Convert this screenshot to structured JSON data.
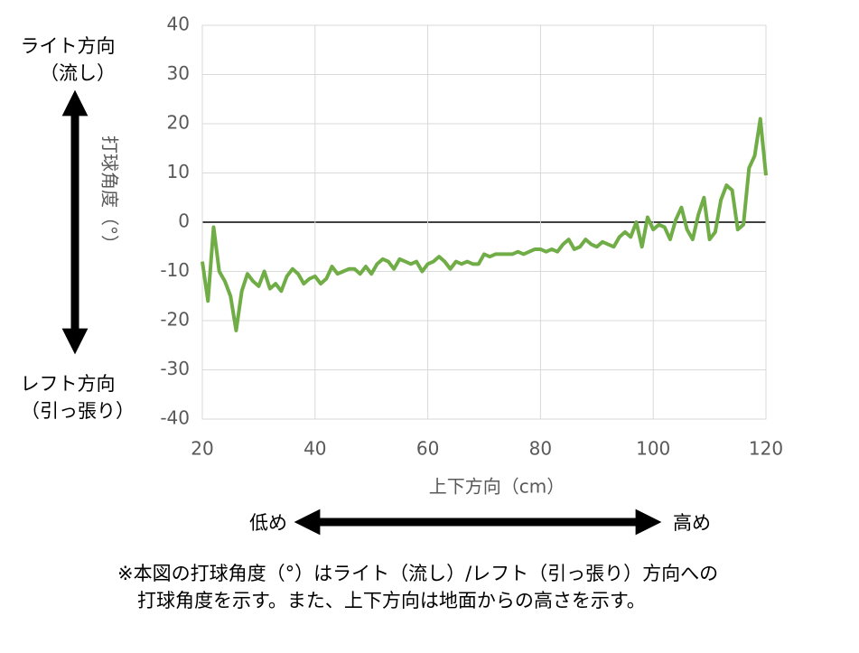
{
  "chart_data": {
    "type": "line",
    "y_label": "打球角度（°）",
    "x_label": "上下方向（cm）",
    "annotations": [
      "ライト方向",
      "（流し）",
      "レフト方向",
      "（引っ張り）",
      "低め",
      "高め"
    ],
    "notes": [
      "※本図の打球角度（°）はライト（流し）/レフト（引っ張り）方向への",
      "打球角度を示す。また、上下方向は地面からの高さを示す。"
    ],
    "color": "#70ad47",
    "grid": true,
    "xlim": [
      20,
      120
    ],
    "xticks": [
      20,
      40,
      60,
      80,
      100,
      120
    ],
    "ylim": [
      -40,
      40
    ],
    "yticks": [
      -40,
      -30,
      -20,
      -10,
      0,
      10,
      20,
      30,
      40
    ],
    "x": [
      20,
      21,
      22,
      23,
      24,
      25,
      26,
      27,
      28,
      29,
      30,
      31,
      32,
      33,
      34,
      35,
      36,
      37,
      38,
      39,
      40,
      41,
      42,
      43,
      44,
      45,
      46,
      47,
      48,
      49,
      50,
      51,
      52,
      53,
      54,
      55,
      56,
      57,
      58,
      59,
      60,
      61,
      62,
      63,
      64,
      65,
      66,
      67,
      68,
      69,
      70,
      71,
      72,
      73,
      74,
      75,
      76,
      77,
      78,
      79,
      80,
      81,
      82,
      83,
      84,
      85,
      86,
      87,
      88,
      89,
      90,
      91,
      92,
      93,
      94,
      95,
      96,
      97,
      98,
      99,
      100,
      101,
      102,
      103,
      104,
      105,
      106,
      107,
      108,
      109,
      110,
      111,
      112,
      113,
      114,
      115,
      116,
      117,
      118,
      119,
      120
    ],
    "values": [
      -8,
      -16,
      -1,
      -10,
      -12,
      -15,
      -22,
      -14,
      -10.5,
      -12,
      -13,
      -10,
      -13.5,
      -12.5,
      -14,
      -11,
      -9.5,
      -10.5,
      -12.5,
      -11.5,
      -11,
      -12.5,
      -11.5,
      -9,
      -10.5,
      -10,
      -9.5,
      -9.5,
      -10.5,
      -9,
      -10.5,
      -8.5,
      -7.5,
      -8,
      -9.5,
      -7.5,
      -8,
      -8.5,
      -8,
      -10,
      -8.5,
      -8,
      -7,
      -8,
      -9.5,
      -8,
      -8.5,
      -8,
      -8.5,
      -8.5,
      -6.5,
      -7,
      -6.5,
      -6.5,
      -6.5,
      -6.5,
      -6,
      -6.5,
      -6,
      -5.5,
      -5.5,
      -6,
      -5.5,
      -6,
      -4.5,
      -3.5,
      -5.5,
      -5,
      -3.5,
      -4.5,
      -5,
      -4,
      -4.5,
      -5,
      -3,
      -2,
      -3,
      0,
      -5,
      1,
      -1.5,
      -0.5,
      -1,
      -3.5,
      0.5,
      3,
      -1.5,
      -3.5,
      1.5,
      5,
      -3.5,
      -2,
      4.5,
      7.5,
      6.5,
      -1.5,
      -0.5,
      11,
      13.5,
      21,
      9.5
    ]
  }
}
